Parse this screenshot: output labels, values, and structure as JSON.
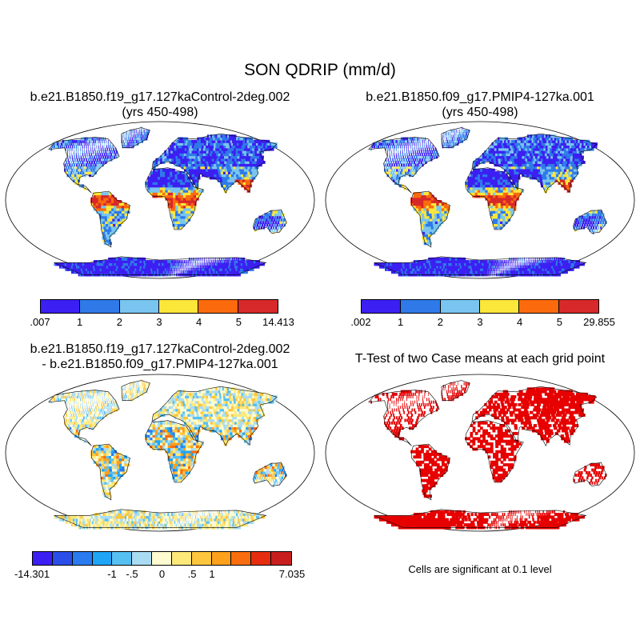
{
  "title": "SON QDRIP (mm/d)",
  "panels": [
    {
      "title1": "b.e21.B1850.f19_g17.127kaControl-2deg.002",
      "title2": "(yrs 450-498)"
    },
    {
      "title1": "b.e21.B1850.f09_g17.PMIP4-127ka.001",
      "title2": "(yrs 450-498)"
    },
    {
      "title1": "b.e21.B1850.f19_g17.127kaControl-2deg.002",
      "title2": "- b.e21.B1850.f09_g17.PMIP4-127ka.001"
    },
    {
      "title1": "T-Test of two Case means at each grid point",
      "title2": ""
    }
  ],
  "colorbars": [
    {
      "colors": [
        "#3c1ff2",
        "#2f7ae8",
        "#79c5ef",
        "#fbe63a",
        "#fb6a0c",
        "#d7282a"
      ],
      "labels": [
        ".007",
        "1",
        "2",
        "3",
        "4",
        "5",
        "14.413"
      ]
    },
    {
      "colors": [
        "#3c1ff2",
        "#2f7ae8",
        "#79c5ef",
        "#fbe63a",
        "#fb6a0c",
        "#d7282a"
      ],
      "labels": [
        ".002",
        "1",
        "2",
        "3",
        "4",
        "5",
        "29.855"
      ]
    },
    {
      "colors": [
        "#3c1ff2",
        "#2b4ee8",
        "#2a7bf0",
        "#1fa4f6",
        "#57c0f3",
        "#a9dcf3",
        "#fffbd0",
        "#fde87a",
        "#fec63c",
        "#fda01c",
        "#f86d0e",
        "#e62d10",
        "#c81e1e"
      ],
      "labels": [
        "-14.301",
        "-1",
        "-.5",
        "0",
        ".5",
        "1",
        "7.035"
      ]
    }
  ],
  "significance_note": "Cells are significant at 0.1 level",
  "map_colors": {
    "ocean": "#ffffff",
    "outline": "#000000",
    "significant": "#e60000"
  }
}
